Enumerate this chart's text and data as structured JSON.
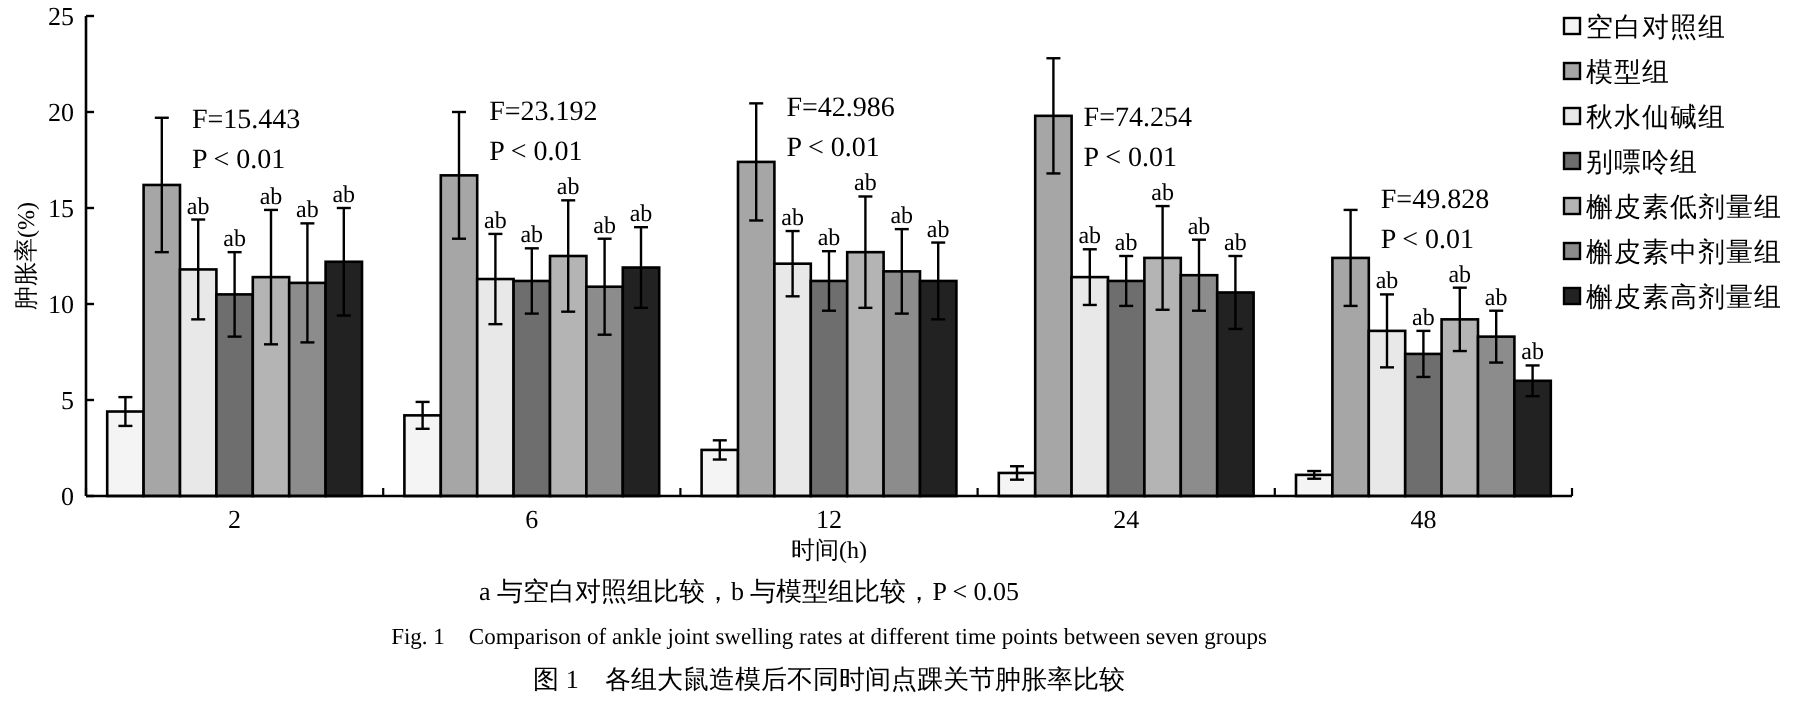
{
  "chart_data": {
    "type": "bar",
    "categories": [
      "2",
      "6",
      "12",
      "24",
      "48"
    ],
    "xlabel": "时间(h)",
    "ylabel": "肿胀率(%)",
    "ylim": [
      0,
      25
    ],
    "yticks": [
      0,
      5,
      10,
      15,
      20,
      25
    ],
    "legend": "right",
    "series": [
      {
        "name": "空白对照组",
        "color": "#f4f4f4",
        "values": [
          4.4,
          4.2,
          2.4,
          1.2,
          1.1
        ],
        "errors": [
          0.75,
          0.7,
          0.5,
          0.35,
          0.2
        ]
      },
      {
        "name": "模型组",
        "color": "#a6a6a6",
        "values": [
          16.2,
          16.7,
          17.4,
          19.8,
          12.4
        ],
        "errors": [
          3.5,
          3.3,
          3.05,
          3.0,
          2.5
        ]
      },
      {
        "name": "秋水仙碱组",
        "color": "#e8e8e8",
        "values": [
          11.8,
          11.3,
          12.1,
          11.4,
          8.6
        ],
        "errors": [
          2.6,
          2.35,
          1.7,
          1.45,
          1.9
        ],
        "value_labels": [
          "ab",
          "ab",
          "ab",
          "ab",
          "ab"
        ]
      },
      {
        "name": "别嘌呤组",
        "color": "#6e6e6e",
        "values": [
          10.5,
          11.2,
          11.2,
          11.2,
          7.4
        ],
        "errors": [
          2.2,
          1.7,
          1.55,
          1.3,
          1.2
        ],
        "value_labels": [
          "ab",
          "ab",
          "ab",
          "ab",
          "ab"
        ]
      },
      {
        "name": "槲皮素低剂量组",
        "color": "#b4b4b4",
        "values": [
          11.4,
          12.5,
          12.7,
          12.4,
          9.2
        ],
        "errors": [
          3.5,
          2.9,
          2.9,
          2.7,
          1.65
        ],
        "value_labels": [
          "ab",
          "ab",
          "ab",
          "ab",
          "ab"
        ]
      },
      {
        "name": "槲皮素中剂量组",
        "color": "#8c8c8c",
        "values": [
          11.1,
          10.9,
          11.7,
          11.5,
          8.3
        ],
        "errors": [
          3.1,
          2.5,
          2.2,
          1.85,
          1.35
        ],
        "value_labels": [
          "ab",
          "ab",
          "ab",
          "ab",
          "ab"
        ]
      },
      {
        "name": "槲皮素高剂量组",
        "color": "#222222",
        "values": [
          12.2,
          11.9,
          11.2,
          10.6,
          6.0
        ],
        "errors": [
          2.8,
          2.1,
          2.0,
          1.9,
          0.8
        ],
        "value_labels": [
          "ab",
          "ab",
          "ab",
          "ab",
          "ab"
        ]
      }
    ],
    "annotations": [
      "F=15.443\nP < 0.01",
      "F=23.192\nP < 0.01",
      "F=42.986\nP < 0.01",
      "F=74.254\nP < 0.01",
      "F=49.828\nP < 0.01",
      "a 与空白对照组比较，b 与模型组比较，P < 0.05",
      "Fig. 1　Comparison of ankle joint swelling rates at different time points between seven groups",
      "图 1　各组大鼠造模后不同时间点踝关节肿胀率比较"
    ]
  }
}
